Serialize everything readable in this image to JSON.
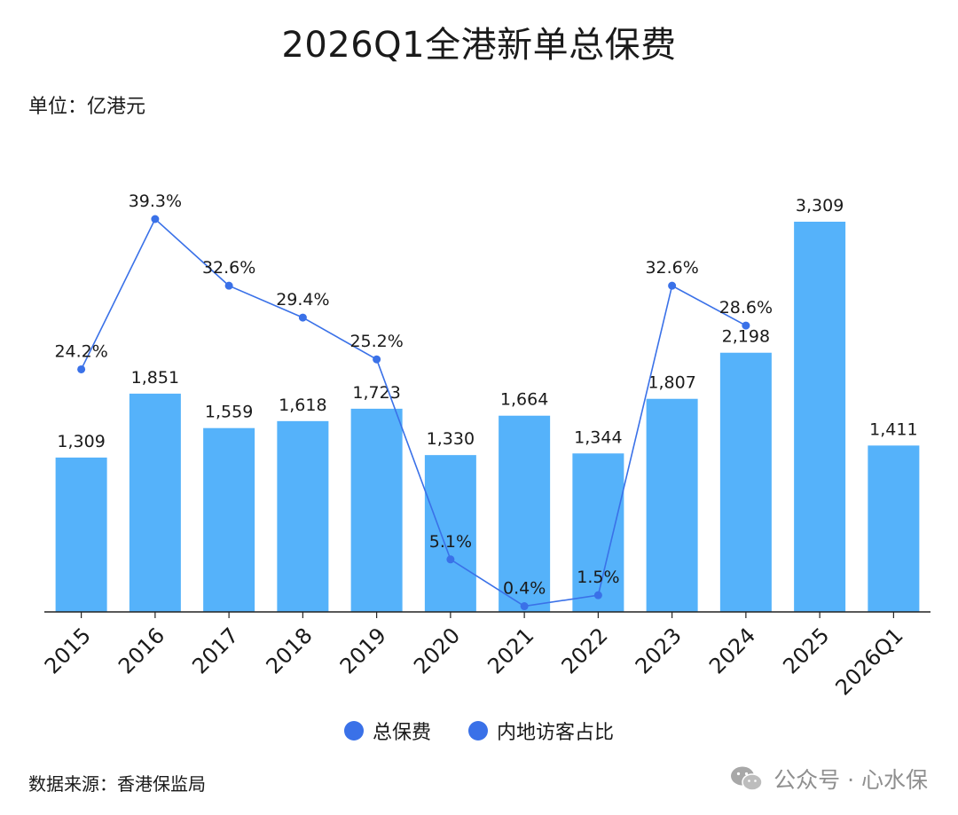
{
  "title": "2026Q1全港新单总保费",
  "unit": "单位：亿港元",
  "source": "数据来源：香港保监局",
  "watermark": {
    "text": "公众号 · 心水保",
    "icon": "wechat-icon"
  },
  "colors": {
    "bar": "#55b2fa",
    "line": "#3a71e8",
    "text": "#1a1a1a",
    "axis": "#222222",
    "watermark": "#8f8f8f"
  },
  "legend": {
    "bar_label": "总保费",
    "line_label": "内地访客占比"
  },
  "chart_data": {
    "type": "bar",
    "categories": [
      "2015",
      "2016",
      "2017",
      "2018",
      "2019",
      "2020",
      "2021",
      "2022",
      "2023",
      "2024",
      "2025",
      "2026Q1"
    ],
    "series": [
      {
        "name": "总保费",
        "type": "bar",
        "values": [
          1309,
          1851,
          1559,
          1618,
          1723,
          1330,
          1664,
          1344,
          1807,
          2198,
          3309,
          1411
        ],
        "labels": [
          "1,309",
          "1,851",
          "1,559",
          "1,618",
          "1,723",
          "1,330",
          "1,664",
          "1,344",
          "1,807",
          "2,198",
          "3,309",
          "1,411"
        ]
      },
      {
        "name": "内地访客占比",
        "type": "line",
        "unit": "%",
        "values": [
          24.2,
          39.3,
          32.6,
          29.4,
          25.2,
          5.1,
          0.4,
          1.5,
          32.6,
          28.6,
          null,
          null
        ],
        "labels": [
          "24.2%",
          "39.3%",
          "32.6%",
          "29.4%",
          "25.2%",
          "5.1%",
          "0.4%",
          "1.5%",
          "32.6%",
          "28.6%",
          "",
          ""
        ]
      }
    ],
    "ylim": [
      0,
      3309
    ],
    "y2lim": [
      0,
      39.3
    ],
    "grid": false,
    "legend_position": "bottom"
  }
}
